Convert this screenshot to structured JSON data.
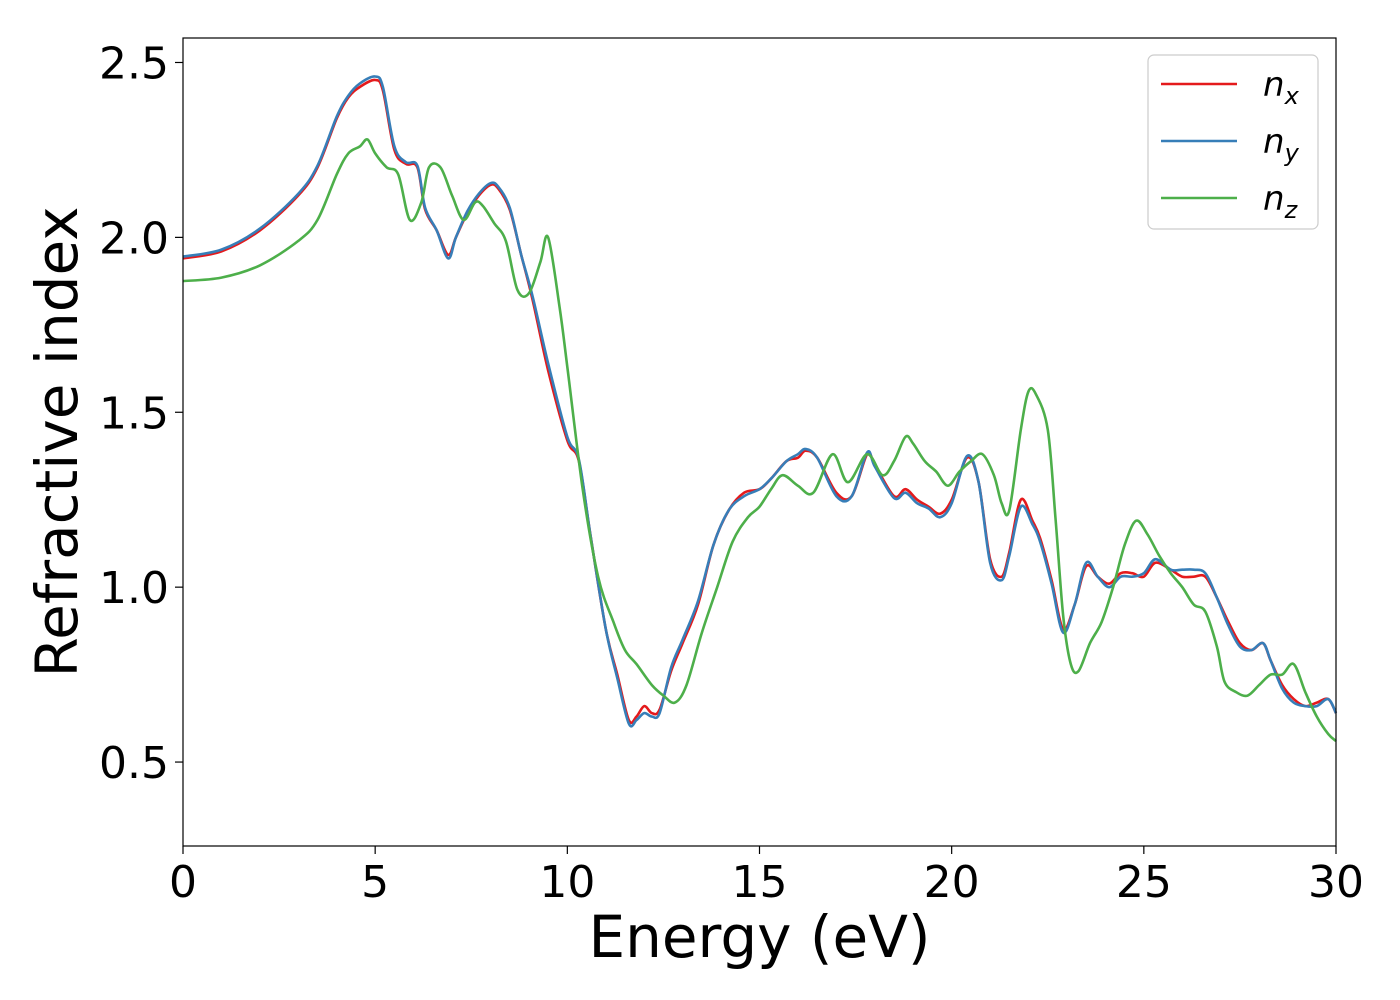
{
  "chart_data": {
    "type": "line",
    "xlabel": "Energy (eV)",
    "ylabel": "Refractive index",
    "xlim": [
      0,
      30
    ],
    "ylim": [
      0.26,
      2.57
    ],
    "xticks": [
      "0",
      "5",
      "10",
      "15",
      "20",
      "25",
      "30"
    ],
    "yticks": [
      "0.5",
      "1.0",
      "1.5",
      "2.0",
      "2.5"
    ],
    "grid": false,
    "legend_position": "top-right",
    "series": [
      {
        "name": "n_x",
        "label_main": "n",
        "label_sub": "x",
        "color": "#e41a1c",
        "x": [
          0,
          1,
          2,
          3,
          3.5,
          4,
          4.3,
          4.6,
          5,
          5.2,
          5.5,
          5.8,
          6.1,
          6.3,
          6.6,
          6.9,
          7.1,
          7.4,
          7.7,
          8,
          8.2,
          8.5,
          8.8,
          9.1,
          9.5,
          10,
          10.3,
          10.6,
          11,
          11.3,
          11.6,
          11.8,
          12,
          12.2,
          12.4,
          12.7,
          13,
          13.4,
          13.8,
          14.2,
          14.6,
          15,
          15.3,
          15.7,
          16,
          16.2,
          16.5,
          17,
          17.4,
          17.8,
          18,
          18.5,
          18.8,
          19.1,
          19.4,
          19.7,
          20,
          20.4,
          20.7,
          21,
          21.3,
          21.5,
          21.8,
          22.1,
          22.3,
          22.6,
          22.9,
          23.2,
          23.5,
          23.8,
          24.1,
          24.4,
          24.7,
          25,
          25.3,
          25.7,
          26,
          26.3,
          26.6,
          26.9,
          27.2,
          27.5,
          27.8,
          28.1,
          28.3,
          28.6,
          28.9,
          29.2,
          29.5,
          29.8,
          30
        ],
        "y": [
          1.94,
          1.96,
          2.02,
          2.12,
          2.2,
          2.34,
          2.4,
          2.43,
          2.45,
          2.42,
          2.25,
          2.21,
          2.2,
          2.08,
          2.02,
          1.95,
          2.0,
          2.07,
          2.12,
          2.15,
          2.14,
          2.08,
          1.95,
          1.82,
          1.62,
          1.42,
          1.36,
          1.15,
          0.88,
          0.75,
          0.62,
          0.63,
          0.66,
          0.64,
          0.65,
          0.76,
          0.84,
          0.95,
          1.12,
          1.22,
          1.27,
          1.28,
          1.31,
          1.36,
          1.37,
          1.39,
          1.37,
          1.27,
          1.26,
          1.38,
          1.35,
          1.26,
          1.28,
          1.25,
          1.23,
          1.21,
          1.25,
          1.37,
          1.3,
          1.08,
          1.03,
          1.1,
          1.25,
          1.19,
          1.14,
          1.02,
          0.88,
          0.95,
          1.06,
          1.03,
          1.01,
          1.04,
          1.04,
          1.03,
          1.07,
          1.05,
          1.03,
          1.03,
          1.03,
          0.97,
          0.9,
          0.84,
          0.82,
          0.84,
          0.79,
          0.72,
          0.68,
          0.66,
          0.67,
          0.68,
          0.64
        ]
      },
      {
        "name": "n_y",
        "label_main": "n",
        "label_sub": "y",
        "color": "#377eb8",
        "x": [
          0,
          1,
          2,
          3,
          3.5,
          4,
          4.3,
          4.6,
          5,
          5.2,
          5.5,
          5.8,
          6.1,
          6.3,
          6.6,
          6.9,
          7.1,
          7.4,
          7.7,
          8,
          8.2,
          8.5,
          8.8,
          9.1,
          9.5,
          10,
          10.3,
          10.6,
          11,
          11.3,
          11.6,
          11.8,
          12,
          12.2,
          12.4,
          12.7,
          13,
          13.4,
          13.8,
          14.2,
          14.6,
          15,
          15.3,
          15.7,
          16,
          16.2,
          16.5,
          17,
          17.4,
          17.8,
          18,
          18.5,
          18.8,
          19.1,
          19.4,
          19.7,
          20,
          20.4,
          20.7,
          21,
          21.3,
          21.5,
          21.8,
          22.1,
          22.3,
          22.6,
          22.9,
          23.2,
          23.5,
          23.8,
          24.1,
          24.4,
          24.7,
          25,
          25.3,
          25.7,
          26,
          26.3,
          26.6,
          26.9,
          27.2,
          27.5,
          27.8,
          28.1,
          28.3,
          28.6,
          28.9,
          29.2,
          29.5,
          29.8,
          30
        ],
        "y": [
          1.945,
          1.965,
          2.025,
          2.125,
          2.205,
          2.345,
          2.405,
          2.44,
          2.46,
          2.43,
          2.26,
          2.215,
          2.205,
          2.085,
          2.02,
          1.94,
          2.0,
          2.075,
          2.125,
          2.155,
          2.145,
          2.085,
          1.95,
          1.83,
          1.64,
          1.43,
          1.365,
          1.15,
          0.88,
          0.74,
          0.61,
          0.62,
          0.64,
          0.63,
          0.64,
          0.77,
          0.85,
          0.96,
          1.12,
          1.22,
          1.26,
          1.28,
          1.31,
          1.36,
          1.38,
          1.395,
          1.37,
          1.26,
          1.26,
          1.385,
          1.345,
          1.255,
          1.27,
          1.24,
          1.225,
          1.2,
          1.24,
          1.375,
          1.3,
          1.07,
          1.02,
          1.09,
          1.23,
          1.18,
          1.13,
          1.01,
          0.87,
          0.95,
          1.07,
          1.03,
          1.0,
          1.03,
          1.03,
          1.04,
          1.08,
          1.05,
          1.05,
          1.05,
          1.04,
          0.97,
          0.89,
          0.83,
          0.82,
          0.84,
          0.79,
          0.71,
          0.67,
          0.66,
          0.66,
          0.68,
          0.64
        ]
      },
      {
        "name": "n_z",
        "label_main": "n",
        "label_sub": "z",
        "color": "#4daf4a",
        "x": [
          0,
          1,
          2,
          3,
          3.5,
          4,
          4.3,
          4.6,
          4.8,
          5.0,
          5.3,
          5.6,
          5.9,
          6.2,
          6.4,
          6.7,
          7.0,
          7.3,
          7.6,
          7.8,
          8.1,
          8.4,
          8.7,
          9.0,
          9.3,
          9.5,
          9.8,
          10,
          10.4,
          10.8,
          11.2,
          11.5,
          11.8,
          12.2,
          12.5,
          12.8,
          13.1,
          13.5,
          13.9,
          14.3,
          14.7,
          15.0,
          15.3,
          15.6,
          16.0,
          16.4,
          16.9,
          17.3,
          17.8,
          18.2,
          18.5,
          18.8,
          19.0,
          19.3,
          19.6,
          19.9,
          20.2,
          20.5,
          20.8,
          21.1,
          21.3,
          21.5,
          21.8,
          22.0,
          22.2,
          22.5,
          22.7,
          22.9,
          23.1,
          23.3,
          23.6,
          23.9,
          24.2,
          24.5,
          24.8,
          25.1,
          25.4,
          25.7,
          26.0,
          26.3,
          26.6,
          26.9,
          27.1,
          27.4,
          27.7,
          28.0,
          28.3,
          28.6,
          28.9,
          29.2,
          29.5,
          29.8,
          30
        ],
        "y": [
          1.875,
          1.885,
          1.92,
          1.99,
          2.05,
          2.18,
          2.24,
          2.26,
          2.28,
          2.24,
          2.2,
          2.18,
          2.05,
          2.1,
          2.2,
          2.2,
          2.12,
          2.05,
          2.1,
          2.09,
          2.04,
          1.99,
          1.85,
          1.84,
          1.93,
          2.0,
          1.8,
          1.63,
          1.28,
          1.03,
          0.9,
          0.82,
          0.78,
          0.72,
          0.69,
          0.67,
          0.72,
          0.87,
          1.0,
          1.13,
          1.2,
          1.23,
          1.28,
          1.32,
          1.29,
          1.27,
          1.38,
          1.3,
          1.38,
          1.32,
          1.36,
          1.43,
          1.41,
          1.36,
          1.33,
          1.29,
          1.33,
          1.36,
          1.38,
          1.32,
          1.24,
          1.22,
          1.45,
          1.56,
          1.55,
          1.45,
          1.2,
          0.92,
          0.78,
          0.76,
          0.84,
          0.9,
          1.0,
          1.12,
          1.19,
          1.15,
          1.09,
          1.04,
          1.0,
          0.95,
          0.93,
          0.83,
          0.73,
          0.7,
          0.69,
          0.72,
          0.75,
          0.75,
          0.78,
          0.7,
          0.63,
          0.58,
          0.56
        ]
      }
    ]
  }
}
